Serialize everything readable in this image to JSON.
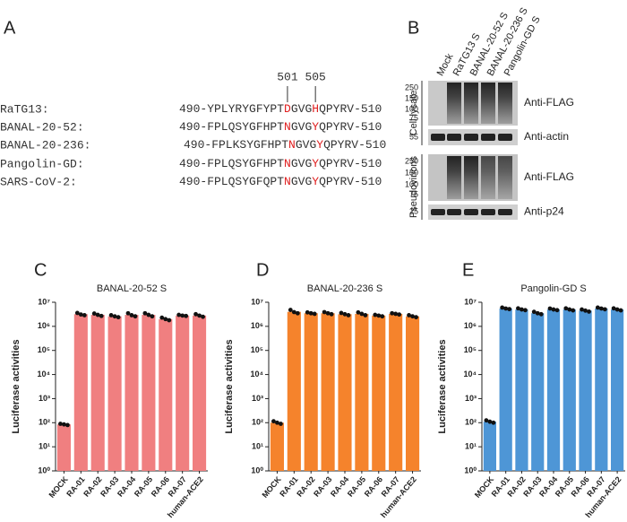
{
  "alignment": {
    "panel": "A",
    "markers": [
      "501",
      "505"
    ],
    "rows": [
      {
        "name": "RaTG13:",
        "segments": [
          "490-YPLYRYGFYPT",
          "D",
          "GVG",
          "H",
          "QPYRV-510"
        ]
      },
      {
        "name": "BANAL-20-52:",
        "segments": [
          "490-FPLQSYGFHPT",
          "N",
          "GVG",
          "Y",
          "QPYRV-510"
        ]
      },
      {
        "name": "BANAL-20-236:",
        "segments": [
          "490-FPLKSYGFHPT",
          "N",
          "GVG",
          "Y",
          "QPYRV-510"
        ]
      },
      {
        "name": "Pangolin-GD:",
        "segments": [
          "490-FPLQSYGFHPT",
          "N",
          "GVG",
          "Y",
          "QPYRV-510"
        ]
      },
      {
        "name": "SARS-CoV-2:",
        "segments": [
          "490-FPLQSYGFQPT",
          "N",
          "GVG",
          "Y",
          "QPYRV-510"
        ]
      }
    ]
  },
  "blot": {
    "panel": "B",
    "lanes": [
      "Mock",
      "RaTG13 S",
      "BANAL-20-52 S",
      "BANAL-20-236 S",
      "Pangolin-GD S"
    ],
    "groups": [
      "Cell lysate",
      "Pseudovirions"
    ],
    "panels": [
      {
        "antibody": "Anti-FLAG",
        "markers": [
          "250",
          "150",
          "100",
          "75"
        ]
      },
      {
        "antibody": "Anti-actin",
        "markers": [
          "55"
        ]
      },
      {
        "antibody": "Anti-FLAG",
        "markers": [
          "250",
          "150",
          "100",
          "75"
        ]
      },
      {
        "antibody": "Anti-p24",
        "markers": [
          "25"
        ]
      }
    ]
  },
  "chart_data": [
    {
      "type": "bar",
      "panel": "C",
      "title": "BANAL-20-52 S",
      "y_label": "Luciferase activities",
      "categories": [
        "MOCK",
        "RA-01",
        "RA-02",
        "RA-03",
        "RA-04",
        "RA-05",
        "RA-06",
        "RA-07",
        "human-ACE2"
      ],
      "values": [
        85,
        3200000,
        3000000,
        2600000,
        3000000,
        3000000,
        2000000,
        2800000,
        2800000
      ],
      "replicates": [
        [
          90,
          85,
          80
        ],
        [
          3600000,
          3100000,
          2900000
        ],
        [
          3400000,
          3000000,
          2700000
        ],
        [
          2900000,
          2600000,
          2400000
        ],
        [
          3500000,
          2900000,
          2600000
        ],
        [
          3500000,
          3000000,
          2600000
        ],
        [
          2300000,
          2000000,
          1800000
        ],
        [
          3000000,
          2800000,
          2700000
        ],
        [
          3200000,
          2800000,
          2500000
        ]
      ],
      "color": "#f07f80",
      "log_scale": true,
      "ylim": [
        1,
        10000000
      ],
      "yticks": [
        {
          "value": 1,
          "label": "10⁰"
        },
        {
          "value": 10,
          "label": "10¹"
        },
        {
          "value": 100,
          "label": "10²"
        },
        {
          "value": 1000,
          "label": "10³"
        },
        {
          "value": 10000,
          "label": "10⁴"
        },
        {
          "value": 100000,
          "label": "10⁵"
        },
        {
          "value": 1000000,
          "label": "10⁶"
        },
        {
          "value": 10000000,
          "label": "10⁷"
        }
      ]
    },
    {
      "type": "bar",
      "panel": "D",
      "title": "BANAL-20-236 S",
      "y_label": "Luciferase activities",
      "categories": [
        "MOCK",
        "RA-01",
        "RA-02",
        "RA-03",
        "RA-04",
        "RA-05",
        "RA-06",
        "RA-07",
        "human-ACE2"
      ],
      "values": [
        100,
        4000000,
        3500000,
        3500000,
        3200000,
        3300000,
        2800000,
        3300000,
        2600000
      ],
      "replicates": [
        [
          115,
          100,
          90
        ],
        [
          4800000,
          3900000,
          3500000
        ],
        [
          3800000,
          3500000,
          3300000
        ],
        [
          3900000,
          3500000,
          3200000
        ],
        [
          3600000,
          3200000,
          2900000
        ],
        [
          3800000,
          3300000,
          2900000
        ],
        [
          3000000,
          2800000,
          2600000
        ],
        [
          3500000,
          3300000,
          3100000
        ],
        [
          2900000,
          2600000,
          2400000
        ]
      ],
      "color": "#f5832c",
      "log_scale": true,
      "ylim": [
        1,
        10000000
      ],
      "yticks": [
        {
          "value": 1,
          "label": "10⁰"
        },
        {
          "value": 10,
          "label": "10¹"
        },
        {
          "value": 100,
          "label": "10²"
        },
        {
          "value": 1000,
          "label": "10³"
        },
        {
          "value": 10000,
          "label": "10⁴"
        },
        {
          "value": 100000,
          "label": "10⁵"
        },
        {
          "value": 1000000,
          "label": "10⁶"
        },
        {
          "value": 10000000,
          "label": "10⁷"
        }
      ]
    },
    {
      "type": "bar",
      "panel": "E",
      "title": "Pangolin-GD S",
      "y_label": "Luciferase activities",
      "categories": [
        "MOCK",
        "RA-01",
        "RA-02",
        "RA-03",
        "RA-04",
        "RA-05",
        "RA-06",
        "RA-07",
        "human-ACE2"
      ],
      "values": [
        110,
        5500000,
        5000000,
        3500000,
        5000000,
        5000000,
        4500000,
        5500000,
        5000000
      ],
      "replicates": [
        [
          125,
          110,
          100
        ],
        [
          6000000,
          5500000,
          5200000
        ],
        [
          5600000,
          5000000,
          4700000
        ],
        [
          4000000,
          3500000,
          3200000
        ],
        [
          5500000,
          5000000,
          4700000
        ],
        [
          5600000,
          5000000,
          4600000
        ],
        [
          5000000,
          4500000,
          4100000
        ],
        [
          6000000,
          5500000,
          5100000
        ],
        [
          5600000,
          5000000,
          4600000
        ]
      ],
      "color": "#4e96d6",
      "log_scale": true,
      "ylim": [
        1,
        10000000
      ],
      "yticks": [
        {
          "value": 1,
          "label": "10⁰"
        },
        {
          "value": 10,
          "label": "10¹"
        },
        {
          "value": 100,
          "label": "10²"
        },
        {
          "value": 1000,
          "label": "10³"
        },
        {
          "value": 10000,
          "label": "10⁴"
        },
        {
          "value": 100000,
          "label": "10⁵"
        },
        {
          "value": 1000000,
          "label": "10⁶"
        },
        {
          "value": 10000000,
          "label": "10⁷"
        }
      ]
    }
  ]
}
